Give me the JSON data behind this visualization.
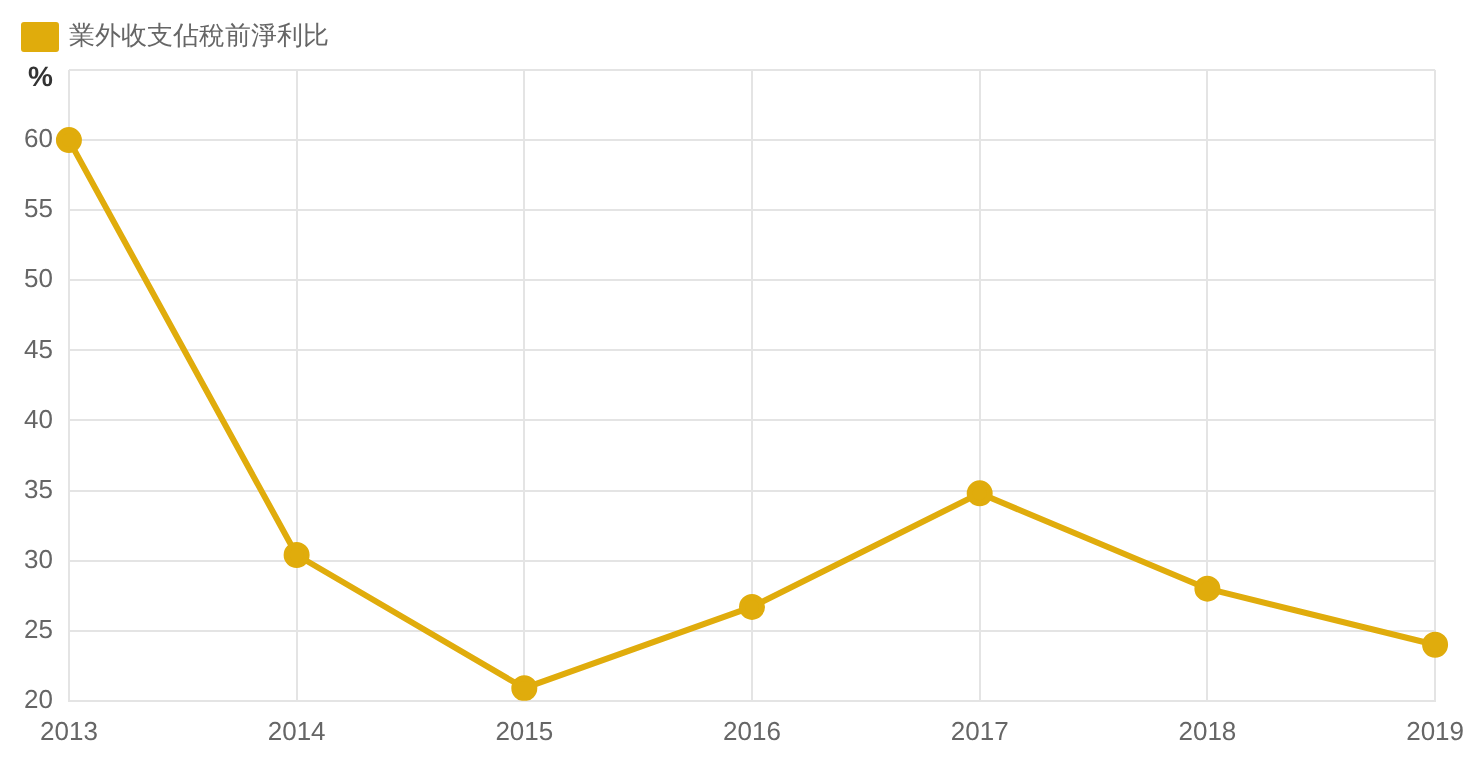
{
  "chart_data": {
    "type": "line",
    "ylabel": "%",
    "categories": [
      "2013",
      "2014",
      "2015",
      "2016",
      "2017",
      "2018",
      "2019"
    ],
    "series": [
      {
        "name": "業外收支佔稅前淨利比",
        "color": "#e0ac0c",
        "values": [
          60,
          30.4,
          20.9,
          26.7,
          34.8,
          28.0,
          24.0
        ]
      }
    ],
    "ylim": [
      20,
      65
    ],
    "yticks": [
      20,
      25,
      30,
      35,
      40,
      45,
      50,
      55,
      60,
      {
        "value": 65,
        "label": null
      }
    ],
    "grid": true,
    "legend": "top left",
    "marker": "circle",
    "line_style": "solid"
  }
}
